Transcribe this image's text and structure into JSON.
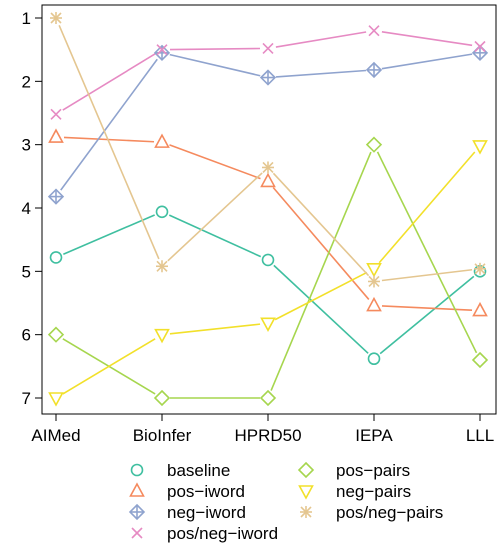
{
  "chart_data": {
    "type": "line",
    "categories": [
      "AIMed",
      "BioInfer",
      "HPRD50",
      "IEPA",
      "LLL"
    ],
    "y_ticks": [
      1,
      2,
      3,
      4,
      5,
      6,
      7
    ],
    "ylim": [
      7.25,
      0.75
    ],
    "y_inverted": true,
    "grid": false,
    "legend_position": "bottom",
    "series": [
      {
        "name": "baseline",
        "marker": "circle",
        "color": "#3fbfa0",
        "values": [
          4.78,
          4.06,
          4.82,
          6.38,
          5.0
        ]
      },
      {
        "name": "pos−iword",
        "marker": "triangle-up",
        "color": "#f58a5e",
        "values": [
          2.88,
          2.96,
          3.58,
          5.54,
          5.62
        ]
      },
      {
        "name": "neg−iword",
        "marker": "diamond-plus",
        "color": "#8fa3ce",
        "values": [
          3.82,
          1.55,
          1.94,
          1.82,
          1.55
        ]
      },
      {
        "name": "pos/neg−iword",
        "marker": "x",
        "color": "#e68ac3",
        "values": [
          2.52,
          1.5,
          1.48,
          1.2,
          1.45
        ]
      },
      {
        "name": "pos−pairs",
        "marker": "diamond",
        "color": "#a6d64e",
        "values": [
          6.0,
          7.0,
          7.0,
          3.0,
          6.4
        ]
      },
      {
        "name": "neg−pairs",
        "marker": "triangle-down",
        "color": "#f2e02a",
        "values": [
          7.0,
          6.0,
          5.82,
          4.96,
          3.02
        ]
      },
      {
        "name": "pos/neg−pairs",
        "marker": "asterisk",
        "color": "#e4c690",
        "values": [
          1.0,
          4.92,
          3.36,
          5.16,
          4.96
        ]
      }
    ]
  }
}
